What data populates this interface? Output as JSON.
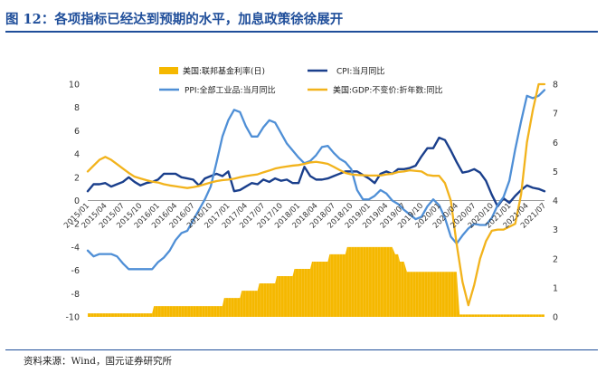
{
  "figure": {
    "title": "图 12：各项指标已经达到预期的水平，加息政策徐徐展开",
    "source": "资料来源：Wind，国元证券研究所"
  },
  "chart_data": {
    "type": "line",
    "xlabel": "",
    "ylabel_left": "",
    "ylabel_right": "",
    "ylim_left": [
      -10,
      10
    ],
    "ylim_right": [
      0,
      8
    ],
    "left_ticks": [
      "10",
      "8",
      "6",
      "4",
      "2",
      "0",
      "-2",
      "-4",
      "-6",
      "-8",
      "-10"
    ],
    "right_ticks": [
      "8",
      "7",
      "6",
      "5",
      "4",
      "3",
      "2",
      "1",
      "0"
    ],
    "x_tick_labels": [
      "2015/01",
      "2015/04",
      "2015/07",
      "2015/10",
      "2016/01",
      "2016/04",
      "2016/07",
      "2016/10",
      "2017/01",
      "2017/04",
      "2017/07",
      "2017/10",
      "2018/01",
      "2018/04",
      "2018/07",
      "2018/10",
      "2019/01",
      "2019/04",
      "2019/07",
      "2019/10",
      "2020/01",
      "2020/04",
      "2020/07",
      "2020/10",
      "2021/01",
      "2021/04",
      "2021/07"
    ],
    "legend": {
      "fed_rate": "美国:联邦基金利率(日)",
      "cpi": "CPI:当月同比",
      "ppi": "PPI:全部工业品:当月同比",
      "gdp": "美国:GDP:不变价:折年数:同比"
    },
    "colors": {
      "fed_rate": "#f5b800",
      "cpi": "#1a3f8c",
      "ppi": "#4f8fd6",
      "gdp": "#f2b31c"
    },
    "series": [
      {
        "key": "fed_rate",
        "axis": "right",
        "style": "area",
        "name": "美国:联邦基金利率(日)",
        "x": [
          0,
          11,
          11.3,
          23,
          23.3,
          26,
          26.3,
          29,
          29.3,
          32,
          32.3,
          35,
          35.3,
          38,
          38.3,
          41,
          41.3,
          44,
          44.3,
          47,
          47.3,
          52,
          52.5,
          53,
          53.3,
          54,
          54.5,
          63,
          63.5,
          78
        ],
        "values": [
          0.12,
          0.12,
          0.37,
          0.37,
          0.65,
          0.65,
          0.9,
          0.9,
          1.15,
          1.15,
          1.4,
          1.4,
          1.65,
          1.65,
          1.9,
          1.9,
          2.15,
          2.15,
          2.4,
          2.4,
          2.4,
          2.4,
          2.15,
          2.15,
          1.9,
          1.9,
          1.55,
          1.55,
          0.08,
          0.08
        ]
      },
      {
        "key": "cpi",
        "axis": "left",
        "style": "line",
        "name": "CPI:当月同比",
        "x": [
          0,
          1,
          2,
          3,
          4,
          5,
          6,
          7,
          8,
          9,
          10,
          11,
          12,
          13,
          14,
          15,
          16,
          17,
          18,
          19,
          20,
          21,
          22,
          23,
          24,
          25,
          26,
          27,
          28,
          29,
          30,
          31,
          32,
          33,
          34,
          35,
          36,
          37,
          38,
          39,
          40,
          41,
          42,
          43,
          44,
          45,
          46,
          47,
          48,
          49,
          50,
          51,
          52,
          53,
          54,
          55,
          56,
          57,
          58,
          59,
          60,
          61,
          62,
          63,
          64,
          65,
          66,
          67,
          68,
          69,
          70,
          71,
          72,
          73,
          74,
          75,
          76,
          77,
          78
        ],
        "values": [
          0.8,
          1.4,
          1.4,
          1.5,
          1.2,
          1.4,
          1.6,
          2.0,
          1.6,
          1.3,
          1.5,
          1.6,
          1.8,
          2.3,
          2.3,
          2.3,
          2.0,
          1.9,
          1.8,
          1.3,
          1.9,
          2.1,
          2.3,
          2.1,
          2.5,
          0.8,
          0.9,
          1.2,
          1.5,
          1.4,
          1.8,
          1.6,
          1.9,
          1.7,
          1.8,
          1.5,
          1.5,
          2.9,
          2.1,
          1.8,
          1.8,
          1.9,
          2.1,
          2.3,
          2.5,
          2.5,
          2.5,
          2.2,
          1.9,
          1.5,
          2.3,
          2.5,
          2.3,
          2.7,
          2.7,
          2.8,
          3.0,
          3.8,
          4.5,
          4.5,
          5.4,
          5.2,
          4.3,
          3.3,
          2.4,
          2.5,
          2.7,
          2.4,
          1.7,
          0.5,
          -0.5,
          0.2,
          -0.2,
          0.4,
          0.9,
          1.3,
          1.1,
          1.0,
          0.8
        ]
      },
      {
        "key": "ppi",
        "axis": "left",
        "style": "line",
        "name": "PPI:全部工业品:当月同比",
        "x": [
          0,
          1,
          2,
          3,
          4,
          5,
          6,
          7,
          8,
          9,
          10,
          11,
          12,
          13,
          14,
          15,
          16,
          17,
          18,
          19,
          20,
          21,
          22,
          23,
          24,
          25,
          26,
          27,
          28,
          29,
          30,
          31,
          32,
          33,
          34,
          35,
          36,
          37,
          38,
          39,
          40,
          41,
          42,
          43,
          44,
          45,
          46,
          47,
          48,
          49,
          50,
          51,
          52,
          53,
          54,
          55,
          56,
          57,
          58,
          59,
          60,
          61,
          62,
          63,
          64,
          65,
          66,
          67,
          68,
          69,
          70,
          71,
          72,
          73,
          74,
          75,
          76,
          77,
          78
        ],
        "values": [
          -4.3,
          -4.8,
          -4.6,
          -4.6,
          -4.6,
          -4.8,
          -5.4,
          -5.9,
          -5.9,
          -5.9,
          -5.9,
          -5.9,
          -5.3,
          -4.9,
          -4.3,
          -3.4,
          -2.8,
          -2.6,
          -1.7,
          -0.8,
          0.1,
          1.2,
          3.3,
          5.5,
          6.9,
          7.8,
          7.6,
          6.4,
          5.5,
          5.5,
          6.3,
          6.9,
          6.7,
          5.8,
          4.9,
          4.3,
          3.7,
          3.2,
          3.4,
          3.9,
          4.6,
          4.7,
          4.1,
          3.6,
          3.3,
          2.7,
          0.9,
          0.1,
          0.1,
          0.4,
          0.9,
          0.6,
          0.0,
          -0.3,
          -0.8,
          -1.2,
          -1.6,
          -1.4,
          -0.5,
          0.1,
          -0.4,
          -1.5,
          -3.1,
          -3.7,
          -3.0,
          -2.4,
          -2.0,
          -2.1,
          -2.1,
          -1.5,
          -0.4,
          0.3,
          1.7,
          4.4,
          6.8,
          9.0,
          8.8,
          9.0,
          9.5
        ]
      },
      {
        "key": "gdp",
        "axis": "right",
        "style": "line",
        "name": "美国:GDP:不变价:折年数:同比",
        "x": [
          0,
          1,
          2,
          3,
          4,
          5,
          6,
          7,
          8,
          9,
          10,
          11,
          12,
          13,
          14,
          15,
          16,
          17,
          18,
          19,
          20,
          21,
          22,
          23,
          24,
          25,
          26,
          27,
          28,
          29,
          30,
          31,
          32,
          33,
          34,
          35,
          36,
          37,
          38,
          39,
          40,
          41,
          42,
          43,
          44,
          45,
          46,
          47,
          48,
          49,
          50,
          51,
          52,
          53,
          54,
          55,
          56,
          57,
          58,
          59,
          60,
          61,
          62,
          63,
          64,
          65,
          66,
          67,
          68,
          69,
          70,
          71,
          72,
          73,
          74,
          75,
          76,
          77,
          78
        ],
        "values": [
          5.0,
          5.2,
          5.4,
          5.5,
          5.4,
          5.25,
          5.1,
          4.95,
          4.82,
          4.76,
          4.7,
          4.65,
          4.62,
          4.56,
          4.52,
          4.49,
          4.46,
          4.43,
          4.46,
          4.5,
          4.56,
          4.62,
          4.67,
          4.7,
          4.72,
          4.75,
          4.8,
          4.84,
          4.87,
          4.9,
          4.97,
          5.03,
          5.1,
          5.14,
          5.17,
          5.2,
          5.22,
          5.26,
          5.31,
          5.33,
          5.3,
          5.26,
          5.16,
          5.05,
          4.95,
          4.9,
          4.88,
          4.87,
          4.86,
          4.86,
          4.86,
          4.9,
          4.92,
          4.98,
          5.0,
          5.04,
          5.02,
          5.0,
          4.88,
          4.85,
          4.85,
          4.6,
          4.0,
          2.5,
          1.2,
          0.4,
          1.1,
          2.0,
          2.6,
          2.96,
          3.0,
          3.0,
          3.1,
          3.2,
          4.2,
          6.0,
          7.1,
          8.0,
          8.0
        ]
      }
    ]
  }
}
